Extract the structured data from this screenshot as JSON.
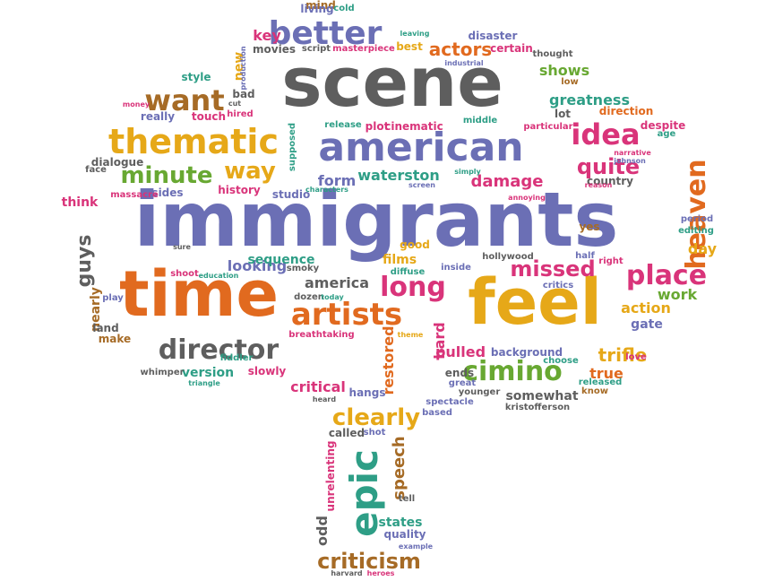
{
  "palette": {
    "purple": "#6b6fb5",
    "grey": "#5e5e5e",
    "orange": "#e16a1f",
    "gold": "#e6a818",
    "pink": "#d9347a",
    "green": "#68a832",
    "teal": "#2e9e86",
    "brown": "#a66b26"
  },
  "words": [
    {
      "id": "immigrants",
      "text": "immigrants",
      "color": "purple",
      "rotated": false
    },
    {
      "id": "scene",
      "text": "scene",
      "color": "grey",
      "rotated": false
    },
    {
      "id": "time",
      "text": "time",
      "color": "orange",
      "rotated": false
    },
    {
      "id": "feel",
      "text": "feel",
      "color": "gold",
      "rotated": false
    },
    {
      "id": "american",
      "text": "american",
      "color": "purple",
      "rotated": false
    },
    {
      "id": "thematic",
      "text": "thematic",
      "color": "gold",
      "rotated": false
    },
    {
      "id": "better",
      "text": "better",
      "color": "purple",
      "rotated": false
    },
    {
      "id": "want",
      "text": "want",
      "color": "brown",
      "rotated": false
    },
    {
      "id": "idea",
      "text": "idea",
      "color": "pink",
      "rotated": false
    },
    {
      "id": "minute",
      "text": "minute",
      "color": "green",
      "rotated": false
    },
    {
      "id": "way",
      "text": "way",
      "color": "gold",
      "rotated": false
    },
    {
      "id": "heaven",
      "text": "heaven",
      "color": "orange",
      "rotated": true
    },
    {
      "id": "quite",
      "text": "quite",
      "color": "pink",
      "rotated": false
    },
    {
      "id": "director",
      "text": "director",
      "color": "grey",
      "rotated": false
    },
    {
      "id": "artists",
      "text": "artists",
      "color": "orange",
      "rotated": false
    },
    {
      "id": "long",
      "text": "long",
      "color": "pink",
      "rotated": false
    },
    {
      "id": "place",
      "text": "place",
      "color": "pink",
      "rotated": false
    },
    {
      "id": "cimino",
      "text": "cimino",
      "color": "green",
      "rotated": false
    },
    {
      "id": "epic",
      "text": "epic",
      "color": "teal",
      "rotated": true
    },
    {
      "id": "clearly",
      "text": "clearly",
      "color": "gold",
      "rotated": false
    },
    {
      "id": "criticism",
      "text": "criticism",
      "color": "brown",
      "rotated": false
    },
    {
      "id": "missed",
      "text": "missed",
      "color": "pink",
      "rotated": false
    },
    {
      "id": "guys",
      "text": "guys",
      "color": "grey",
      "rotated": true
    },
    {
      "id": "actors",
      "text": "actors",
      "color": "orange",
      "rotated": false
    },
    {
      "id": "shows",
      "text": "shows",
      "color": "green",
      "rotated": false
    },
    {
      "id": "greatness",
      "text": "greatness",
      "color": "teal",
      "rotated": false
    },
    {
      "id": "damage",
      "text": "damage",
      "color": "pink",
      "rotated": false
    },
    {
      "id": "waterston",
      "text": "waterston",
      "color": "teal",
      "rotated": false
    },
    {
      "id": "form",
      "text": "form",
      "color": "purple",
      "rotated": false
    },
    {
      "id": "looking",
      "text": "looking",
      "color": "purple",
      "rotated": false
    },
    {
      "id": "sequence",
      "text": "sequence",
      "color": "teal",
      "rotated": false
    },
    {
      "id": "america",
      "text": "america",
      "color": "grey",
      "rotated": false
    },
    {
      "id": "version",
      "text": "version",
      "color": "teal",
      "rotated": false
    },
    {
      "id": "films",
      "text": "films",
      "color": "gold",
      "rotated": false
    },
    {
      "id": "pulled",
      "text": "pulled",
      "color": "pink",
      "rotated": false
    },
    {
      "id": "trifle",
      "text": "trifle",
      "color": "gold",
      "rotated": false
    },
    {
      "id": "true",
      "text": "true",
      "color": "orange",
      "rotated": false
    },
    {
      "id": "work",
      "text": "work",
      "color": "green",
      "rotated": false
    },
    {
      "id": "action",
      "text": "action",
      "color": "gold",
      "rotated": false
    },
    {
      "id": "critical",
      "text": "critical",
      "color": "pink",
      "rotated": false
    },
    {
      "id": "speech",
      "text": "speech",
      "color": "brown",
      "rotated": true
    },
    {
      "id": "restored",
      "text": "restored",
      "color": "orange",
      "rotated": true
    },
    {
      "id": "somewhat",
      "text": "somewhat",
      "color": "grey",
      "rotated": false
    },
    {
      "id": "hard",
      "text": "hard",
      "color": "pink",
      "rotated": true
    },
    {
      "id": "background",
      "text": "background",
      "color": "purple",
      "rotated": false
    },
    {
      "id": "odd",
      "text": "odd",
      "color": "grey",
      "rotated": true
    },
    {
      "id": "nearly",
      "text": "nearly",
      "color": "brown",
      "rotated": true
    },
    {
      "id": "key",
      "text": "key",
      "color": "pink",
      "rotated": false
    },
    {
      "id": "new",
      "text": "new",
      "color": "gold",
      "rotated": true
    },
    {
      "id": "slowly",
      "text": "slowly",
      "color": "pink",
      "rotated": false
    },
    {
      "id": "hangs",
      "text": "hangs",
      "color": "purple",
      "rotated": false
    },
    {
      "id": "history",
      "text": "history",
      "color": "pink",
      "rotated": false
    },
    {
      "id": "ends",
      "text": "ends",
      "color": "grey",
      "rotated": false
    },
    {
      "id": "think",
      "text": "think",
      "color": "pink",
      "rotated": false
    },
    {
      "id": "gate",
      "text": "gate",
      "color": "purple",
      "rotated": false
    },
    {
      "id": "day",
      "text": "day",
      "color": "gold",
      "rotated": false
    },
    {
      "id": "states",
      "text": "states",
      "color": "teal",
      "rotated": false
    },
    {
      "id": "quality",
      "text": "quality",
      "color": "purple",
      "rotated": false
    },
    {
      "id": "disaster",
      "text": "disaster",
      "color": "purple",
      "rotated": false
    },
    {
      "id": "certain",
      "text": "certain",
      "color": "pink",
      "rotated": false
    },
    {
      "id": "movies",
      "text": "movies",
      "color": "grey",
      "rotated": false
    },
    {
      "id": "mind",
      "text": "mind",
      "color": "brown",
      "rotated": false
    },
    {
      "id": "living",
      "text": "living",
      "color": "purple",
      "rotated": false
    },
    {
      "id": "style",
      "text": "style",
      "color": "teal",
      "rotated": false
    },
    {
      "id": "really",
      "text": "really",
      "color": "purple",
      "rotated": false
    },
    {
      "id": "touch",
      "text": "touch",
      "color": "pink",
      "rotated": false
    },
    {
      "id": "dialogue",
      "text": "dialogue",
      "color": "grey",
      "rotated": false
    },
    {
      "id": "sides",
      "text": "sides",
      "color": "purple",
      "rotated": false
    },
    {
      "id": "studio",
      "text": "studio",
      "color": "purple",
      "rotated": false
    },
    {
      "id": "release",
      "text": "release",
      "color": "teal",
      "rotated": false
    },
    {
      "id": "plot",
      "text": "plot",
      "color": "pink",
      "rotated": false
    },
    {
      "id": "cinematic",
      "text": "cinematic",
      "color": "pink",
      "rotated": false
    },
    {
      "id": "middle",
      "text": "middle",
      "color": "teal",
      "rotated": false
    },
    {
      "id": "particular",
      "text": "particular",
      "color": "pink",
      "rotated": false
    },
    {
      "id": "lot",
      "text": "lot",
      "color": "grey",
      "rotated": false
    },
    {
      "id": "despite",
      "text": "despite",
      "color": "pink",
      "rotated": false
    },
    {
      "id": "direction",
      "text": "direction",
      "color": "orange",
      "rotated": false
    },
    {
      "id": "country",
      "text": "country",
      "color": "grey",
      "rotated": false
    },
    {
      "id": "period",
      "text": "period",
      "color": "purple",
      "rotated": false
    },
    {
      "id": "editing",
      "text": "editing",
      "color": "teal",
      "rotated": false
    },
    {
      "id": "yes",
      "text": "yes",
      "color": "brown",
      "rotated": false
    },
    {
      "id": "good",
      "text": "good",
      "color": "gold",
      "rotated": false
    },
    {
      "id": "inside",
      "text": "inside",
      "color": "purple",
      "rotated": false
    },
    {
      "id": "diffuse",
      "text": "diffuse",
      "color": "teal",
      "rotated": false
    },
    {
      "id": "half",
      "text": "half",
      "color": "purple",
      "rotated": false
    },
    {
      "id": "critics",
      "text": "critics",
      "color": "purple",
      "rotated": false
    },
    {
      "id": "choose",
      "text": "choose",
      "color": "teal",
      "rotated": false
    },
    {
      "id": "love",
      "text": "love",
      "color": "pink",
      "rotated": false
    },
    {
      "id": "released",
      "text": "released",
      "color": "teal",
      "rotated": false
    },
    {
      "id": "know",
      "text": "know",
      "color": "brown",
      "rotated": false
    },
    {
      "id": "kristofferson",
      "text": "kristofferson",
      "color": "grey",
      "rotated": false
    },
    {
      "id": "spectacle",
      "text": "spectacle",
      "color": "purple",
      "rotated": false
    },
    {
      "id": "younger",
      "text": "younger",
      "color": "grey",
      "rotated": false
    },
    {
      "id": "based",
      "text": "based",
      "color": "purple",
      "rotated": false
    },
    {
      "id": "great",
      "text": "great",
      "color": "purple",
      "rotated": false
    },
    {
      "id": "called",
      "text": "called",
      "color": "grey",
      "rotated": false
    },
    {
      "id": "shot",
      "text": "shot",
      "color": "purple",
      "rotated": false
    },
    {
      "id": "tell",
      "text": "tell",
      "color": "grey",
      "rotated": false
    },
    {
      "id": "unrelenting",
      "text": "unrelenting",
      "color": "pink",
      "rotated": true
    },
    {
      "id": "example",
      "text": "example",
      "color": "purple",
      "rotated": false
    },
    {
      "id": "harvard",
      "text": "harvard",
      "color": "grey",
      "rotated": false
    },
    {
      "id": "heroes",
      "text": "heroes",
      "color": "pink",
      "rotated": false
    },
    {
      "id": "land",
      "text": "land",
      "color": "grey",
      "rotated": false
    },
    {
      "id": "make",
      "text": "make",
      "color": "brown",
      "rotated": false
    },
    {
      "id": "play",
      "text": "play",
      "color": "purple",
      "rotated": false
    },
    {
      "id": "breathtaking",
      "text": "breathtaking",
      "color": "pink",
      "rotated": false
    },
    {
      "id": "fiddler",
      "text": "fiddler",
      "color": "teal",
      "rotated": false
    },
    {
      "id": "triangle",
      "text": "triangle",
      "color": "teal",
      "rotated": false
    },
    {
      "id": "whimper",
      "text": "whimper",
      "color": "grey",
      "rotated": false
    },
    {
      "id": "heard",
      "text": "heard",
      "color": "grey",
      "rotated": false
    },
    {
      "id": "dozen",
      "text": "dozen",
      "color": "grey",
      "rotated": false
    },
    {
      "id": "today",
      "text": "today",
      "color": "teal",
      "rotated": false
    },
    {
      "id": "smoky",
      "text": "smoky",
      "color": "grey",
      "rotated": false
    },
    {
      "id": "shoot",
      "text": "shoot",
      "color": "pink",
      "rotated": false
    },
    {
      "id": "education",
      "text": "education",
      "color": "teal",
      "rotated": false
    },
    {
      "id": "sure",
      "text": "sure",
      "color": "grey",
      "rotated": false
    },
    {
      "id": "massacre",
      "text": "massacre",
      "color": "pink",
      "rotated": false
    },
    {
      "id": "face",
      "text": "face",
      "color": "grey",
      "rotated": false
    },
    {
      "id": "money",
      "text": "money",
      "color": "pink",
      "rotated": false
    },
    {
      "id": "bad",
      "text": "bad",
      "color": "grey",
      "rotated": false
    },
    {
      "id": "cut",
      "text": "cut",
      "color": "grey",
      "rotated": false
    },
    {
      "id": "hired",
      "text": "hired",
      "color": "pink",
      "rotated": false
    },
    {
      "id": "script",
      "text": "script",
      "color": "grey",
      "rotated": false
    },
    {
      "id": "masterpiece",
      "text": "masterpiece",
      "color": "pink",
      "rotated": false
    },
    {
      "id": "best",
      "text": "best",
      "color": "gold",
      "rotated": false
    },
    {
      "id": "leaving",
      "text": "leaving",
      "color": "teal",
      "rotated": false
    },
    {
      "id": "cold",
      "text": "cold",
      "color": "teal",
      "rotated": false
    },
    {
      "id": "industrial",
      "text": "industrial",
      "color": "purple",
      "rotated": false
    },
    {
      "id": "thought",
      "text": "thought",
      "color": "grey",
      "rotated": false
    },
    {
      "id": "low",
      "text": "low",
      "color": "brown",
      "rotated": false
    },
    {
      "id": "theme",
      "text": "theme",
      "color": "gold",
      "rotated": false
    },
    {
      "id": "hollywood",
      "text": "hollywood",
      "color": "grey",
      "rotated": false
    },
    {
      "id": "right",
      "text": "right",
      "color": "pink",
      "rotated": false
    },
    {
      "id": "simply",
      "text": "simply",
      "color": "teal",
      "rotated": false
    },
    {
      "id": "screen",
      "text": "screen",
      "color": "purple",
      "rotated": false
    },
    {
      "id": "annoying",
      "text": "annoying",
      "color": "pink",
      "rotated": false
    },
    {
      "id": "reason",
      "text": "reason",
      "color": "pink",
      "rotated": false
    },
    {
      "id": "narrative",
      "text": "narrative",
      "color": "pink",
      "rotated": false
    },
    {
      "id": "johnson",
      "text": "johnson",
      "color": "purple",
      "rotated": false
    },
    {
      "id": "age",
      "text": "age",
      "color": "teal",
      "rotated": false
    },
    {
      "id": "characters",
      "text": "characters",
      "color": "teal",
      "rotated": false
    },
    {
      "id": "production",
      "text": "production",
      "color": "purple",
      "rotated": true
    },
    {
      "id": "supposed",
      "text": "supposed",
      "color": "teal",
      "rotated": true
    }
  ]
}
